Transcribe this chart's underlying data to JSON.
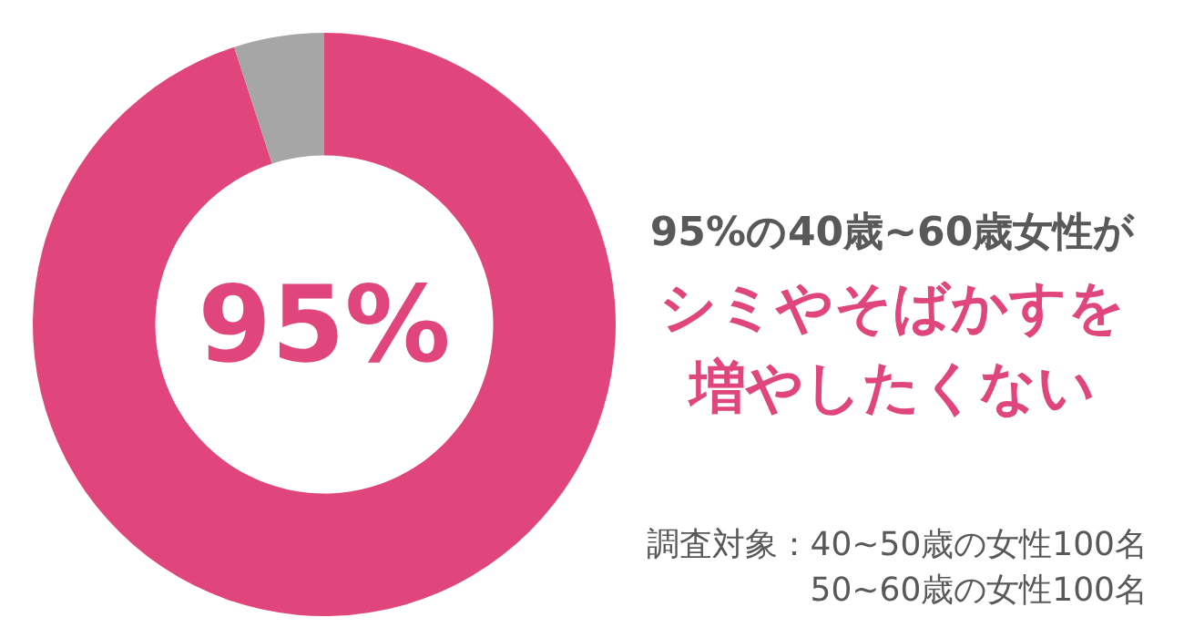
{
  "chart_data": {
    "type": "donut",
    "title": "95%の40歳~60歳女性が",
    "subtitle": "シミやそばかすを増やしたくない",
    "categories": [
      null,
      null
    ],
    "values": [
      95,
      5
    ],
    "colors": [
      "#e0467c",
      "#a6a6a6"
    ],
    "value_labels": [
      "95%",
      null
    ],
    "annotations": [
      "調査対象：40~50歳の女性100名",
      "50~60歳の女性100名"
    ]
  }
}
